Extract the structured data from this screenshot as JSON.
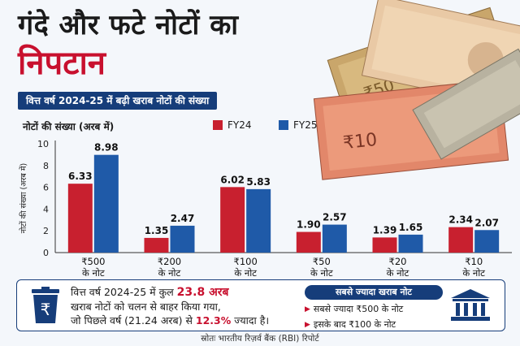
{
  "title": {
    "line1": "गंदे और फटे नोटों का",
    "line2": "निपटान"
  },
  "subtitle": "वित्त वर्ष 2024-25 में बढ़ी खराब नोटों की संख्या",
  "chart_data": {
    "type": "bar",
    "title": "नोटों की संख्या (अरब में)",
    "ylabel": "नोटों की संख्या (अरब में)",
    "xlabel": "",
    "ylim": [
      0,
      10
    ],
    "yticks": [
      0,
      2,
      4,
      6,
      8,
      10
    ],
    "categories": [
      {
        "line1": "₹500",
        "line2": "के नोट"
      },
      {
        "line1": "₹200",
        "line2": "के नोट"
      },
      {
        "line1": "₹100",
        "line2": "के नोट"
      },
      {
        "line1": "₹50",
        "line2": "के नोट"
      },
      {
        "line1": "₹20",
        "line2": "के नोट"
      },
      {
        "line1": "₹10",
        "line2": "के नोट"
      }
    ],
    "series": [
      {
        "name": "FY24",
        "color": "#c8202f",
        "values": [
          6.33,
          1.35,
          6.02,
          1.9,
          1.39,
          2.34
        ],
        "labels": [
          "6.33",
          "1.35",
          "6.02",
          "1.90",
          "1.39",
          "2.34"
        ]
      },
      {
        "name": "FY25",
        "color": "#1f5aa8",
        "values": [
          8.98,
          2.47,
          5.83,
          2.57,
          1.65,
          2.07
        ],
        "labels": [
          "8.98",
          "2.47",
          "5.83",
          "2.57",
          "1.65",
          "2.07"
        ]
      }
    ],
    "grid": false,
    "legend": "top-right"
  },
  "info": {
    "part1": "वित्त वर्ष 2024-25 में कुल ",
    "highlight1": "23.8 अरब",
    "part2": "खराब नोटों को चलन से बाहर किया गया,",
    "part3": "जो पिछले वर्ष (21.24 अरब) से ",
    "highlight2": "12.3%",
    "part4": " ज्यादा है।"
  },
  "most": {
    "title": "सबसे ज्यादा खराब नोट",
    "item1": "सबसे ज्यादा ₹500 के नोट",
    "item2": "इसके बाद ₹100 के नोट"
  },
  "source": "स्रोतः भारतीय रिज़र्व बैंक (RBI) रिपोर्ट",
  "icons": {
    "bin": "rupee-bin-icon",
    "bank": "bank-icon",
    "notes": "currency-notes-image"
  }
}
